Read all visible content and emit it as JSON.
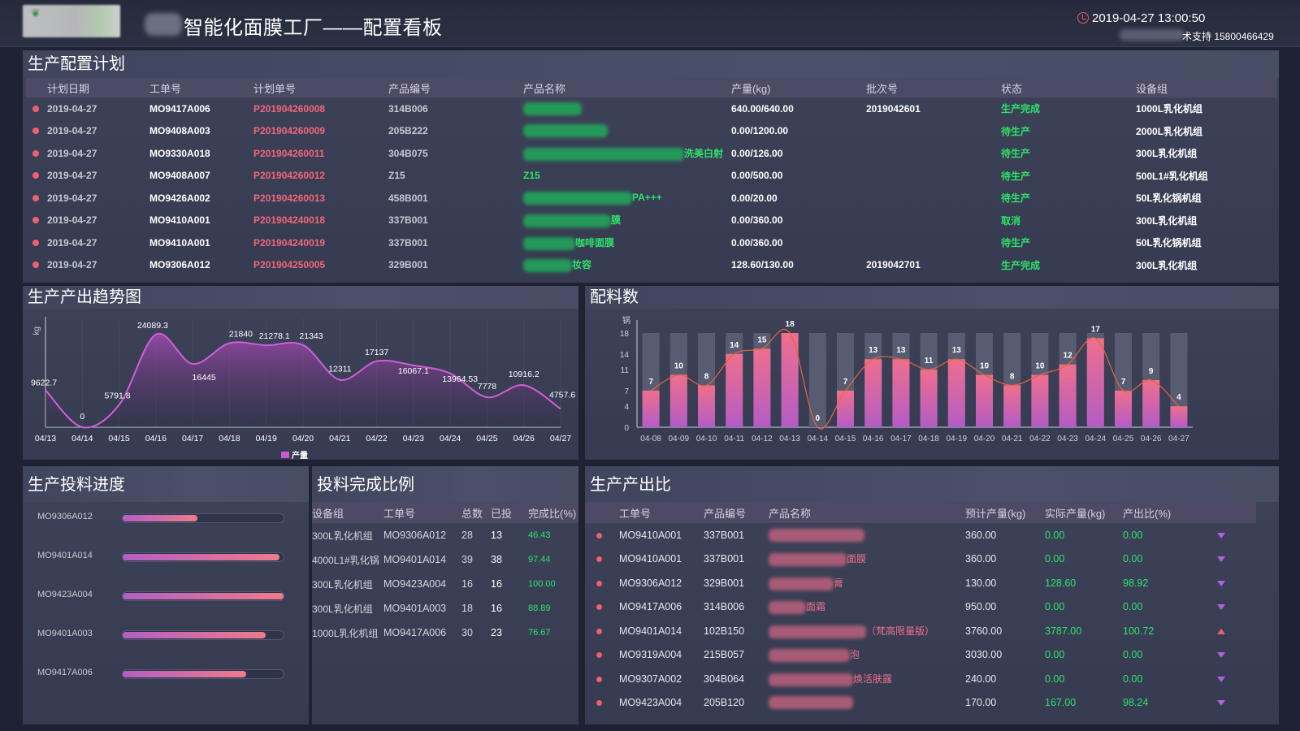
{
  "header": {
    "title": "智能化面膜工厂——配置看板",
    "datetime": "2019-04-27 13:00:50",
    "support": "术支持 15800466429"
  },
  "plan": {
    "title": "生产配置计划",
    "columns": [
      "计划日期",
      "工单号",
      "计划单号",
      "产品编号",
      "产品名称",
      "产量(kg)",
      "批次号",
      "状态",
      "设备组"
    ],
    "rows": [
      {
        "date": "2019-04-27",
        "order": "MO9417A006",
        "plan_no": "P201904260008",
        "code": "314B006",
        "name_tail": "",
        "qty": "640.00/640.00",
        "batch": "2019042601",
        "status": "生产完成",
        "device": "1000L乳化机组"
      },
      {
        "date": "2019-04-27",
        "order": "MO9408A003",
        "plan_no": "P201904260009",
        "code": "205B222",
        "name_tail": "",
        "qty": "0.00/1200.00",
        "batch": "",
        "status": "待生产",
        "device": "2000L乳化机组"
      },
      {
        "date": "2019-04-27",
        "order": "MO9330A018",
        "plan_no": "P201904260011",
        "code": "304B075",
        "name_tail": "洗美白射",
        "qty": "0.00/126.00",
        "batch": "",
        "status": "待生产",
        "device": "300L乳化机组"
      },
      {
        "date": "2019-04-27",
        "order": "MO9408A007",
        "plan_no": "P201904260012",
        "code": "Z15",
        "name_tail": "Z15",
        "qty": "0.00/500.00",
        "batch": "",
        "status": "待生产",
        "device": "500L1#乳化机组"
      },
      {
        "date": "2019-04-27",
        "order": "MO9426A002",
        "plan_no": "P201904260013",
        "code": "458B001",
        "name_tail": "PA+++",
        "qty": "0.00/20.00",
        "batch": "",
        "status": "待生产",
        "device": "50L乳化锅机组"
      },
      {
        "date": "2019-04-27",
        "order": "MO9410A001",
        "plan_no": "P201904240018",
        "code": "337B001",
        "name_tail": "膜",
        "qty": "0.00/360.00",
        "batch": "",
        "status": "取消",
        "device": "300L乳化机组"
      },
      {
        "date": "2019-04-27",
        "order": "MO9410A001",
        "plan_no": "P201904240019",
        "code": "337B001",
        "name_tail": "咖啡面膜",
        "qty": "0.00/360.00",
        "batch": "",
        "status": "待生产",
        "device": "50L乳化锅机组"
      },
      {
        "date": "2019-04-27",
        "order": "MO9306A012",
        "plan_no": "P201904250005",
        "code": "329B001",
        "name_tail": "妆容",
        "qty": "128.60/130.00",
        "batch": "2019042701",
        "status": "生产完成",
        "device": "300L乳化机组"
      }
    ]
  },
  "trend": {
    "title": "生产产出趋势图",
    "ylabel": "kg",
    "legend": "产量",
    "chart_data": {
      "type": "area",
      "categories": [
        "04/13",
        "04/14",
        "04/15",
        "04/16",
        "04/17",
        "04/18",
        "04/19",
        "04/20",
        "04/21",
        "04/22",
        "04/23",
        "04/24",
        "04/25",
        "04/26",
        "04/27"
      ],
      "series": [
        {
          "name": "产量",
          "values": [
            9622.7,
            0,
            5791.8,
            24089.3,
            16445,
            21840,
            21278.1,
            21343,
            12311,
            17137,
            16067.1,
            13964.53,
            7778,
            10916.2,
            4757.6
          ]
        }
      ],
      "ylim": [
        0,
        27000
      ]
    }
  },
  "batch": {
    "title": "配料数",
    "ylabel": "锅",
    "chart_data": {
      "type": "bar",
      "categories": [
        "04-08",
        "04-09",
        "04-10",
        "04-11",
        "04-12",
        "04-13",
        "04-14",
        "04-15",
        "04-16",
        "04-17",
        "04-18",
        "04-19",
        "04-20",
        "04-21",
        "04-22",
        "04-23",
        "04-24",
        "04-25",
        "04-26",
        "04-27"
      ],
      "values": [
        7,
        10,
        8,
        14,
        15,
        18,
        0,
        7,
        13,
        13,
        11,
        13,
        10,
        8,
        10,
        12,
        17,
        7,
        9,
        4
      ],
      "yticks": [
        0,
        4,
        7,
        11,
        14,
        18
      ],
      "ylim": [
        0,
        18
      ]
    }
  },
  "feed": {
    "title": "生产投料进度",
    "items": [
      {
        "label": "MO9306A012",
        "progress": 0.4643
      },
      {
        "label": "MO9401A014",
        "progress": 0.9744
      },
      {
        "label": "MO9423A004",
        "progress": 1.0
      },
      {
        "label": "MO9401A003",
        "progress": 0.8889
      },
      {
        "label": "MO9417A006",
        "progress": 0.7667
      }
    ]
  },
  "ratio": {
    "title": "投料完成比例",
    "columns": [
      "设备组",
      "工单号",
      "总数",
      "已投",
      "完成比(%)"
    ],
    "rows": [
      {
        "device": "300L乳化机组",
        "order": "MO9306A012",
        "total": "28",
        "done": "13",
        "ratio": "46.43"
      },
      {
        "device": "4000L1#乳化锅",
        "order": "MO9401A014",
        "total": "39",
        "done": "38",
        "ratio": "97.44"
      },
      {
        "device": "300L乳化机组",
        "order": "MO9423A004",
        "total": "16",
        "done": "16",
        "ratio": "100.00"
      },
      {
        "device": "300L乳化机组",
        "order": "MO9401A003",
        "total": "18",
        "done": "16",
        "ratio": "88.89"
      },
      {
        "device": "1000L乳化机组",
        "order": "MO9417A006",
        "total": "30",
        "done": "23",
        "ratio": "76.67"
      }
    ]
  },
  "output": {
    "title": "生产产出比",
    "columns": [
      "工单号",
      "产品编号",
      "产品名称",
      "预计产量(kg)",
      "实际产量(kg)",
      "产出比(%)"
    ],
    "rows": [
      {
        "order": "MO9410A001",
        "code": "337B001",
        "name_tail": "",
        "plan": "360.00",
        "actual": "0.00",
        "ratio": "0.00",
        "trend": "down"
      },
      {
        "order": "MO9410A001",
        "code": "337B001",
        "name_tail": "面膜",
        "plan": "360.00",
        "actual": "0.00",
        "ratio": "0.00",
        "trend": "down"
      },
      {
        "order": "MO9306A012",
        "code": "329B001",
        "name_tail": "膏",
        "plan": "130.00",
        "actual": "128.60",
        "ratio": "98.92",
        "trend": "down"
      },
      {
        "order": "MO9417A006",
        "code": "314B006",
        "name_tail": "面霜",
        "plan": "950.00",
        "actual": "0.00",
        "ratio": "0.00",
        "trend": "down"
      },
      {
        "order": "MO9401A014",
        "code": "102B150",
        "name_tail": "（梵高限量版）",
        "plan": "3760.00",
        "actual": "3787.00",
        "ratio": "100.72",
        "trend": "up"
      },
      {
        "order": "MO9319A004",
        "code": "215B057",
        "name_tail": "泡",
        "plan": "3030.00",
        "actual": "0.00",
        "ratio": "0.00",
        "trend": "down"
      },
      {
        "order": "MO9307A002",
        "code": "304B064",
        "name_tail": "焕活肤露",
        "plan": "240.00",
        "actual": "0.00",
        "ratio": "0.00",
        "trend": "down"
      },
      {
        "order": "MO9423A004",
        "code": "205B120",
        "name_tail": "",
        "plan": "170.00",
        "actual": "167.00",
        "ratio": "98.24",
        "trend": "down"
      }
    ]
  }
}
